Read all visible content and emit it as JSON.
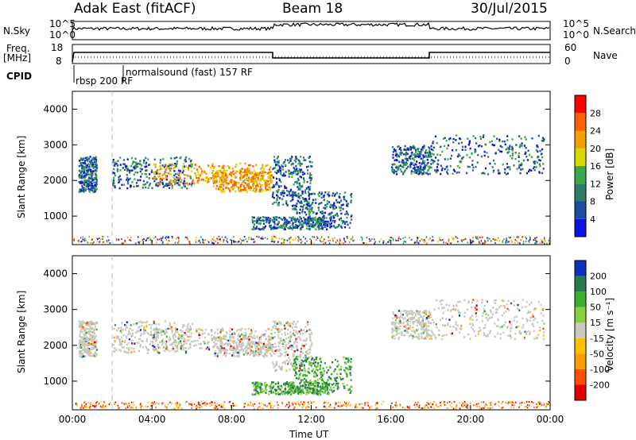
{
  "header": {
    "radar": "Adak East (fitACF)",
    "beam": "Beam 18",
    "date": "30/Jul/2015"
  },
  "panels": {
    "nsky_label": "N.Sky",
    "nsky_ticks": [
      "10^5",
      "10^0"
    ],
    "nsearch_label": "N.Search",
    "nsearch_ticks": [
      "10^5",
      "10^0"
    ],
    "freq_label_1": "Freq.",
    "freq_label_2": "[MHz]",
    "freq_ticks": [
      "18",
      "8"
    ],
    "nave_label": "Nave",
    "nave_ticks": [
      "60",
      "0"
    ],
    "cpid_label": "CPID",
    "cpid_modes": [
      "rbsp 200 RF",
      "normalsound (fast) 157 RF"
    ]
  },
  "chart_data": [
    {
      "type": "heatmap",
      "title": "",
      "ylabel": "Slant Range [km]",
      "xlabel": "",
      "y_ticks": [
        "1000",
        "2000",
        "3000",
        "4000"
      ],
      "ylim": [
        200,
        4500
      ],
      "colorbar_label": "Power [dB]",
      "colorbar_ticks": [
        "4",
        "8",
        "12",
        "16",
        "20",
        "24",
        "28"
      ],
      "colors": [
        "#1010e8",
        "#1d4da0",
        "#2e7d6a",
        "#3aa84a",
        "#d8d800",
        "#f0a000",
        "#ff6000",
        "#ff0000"
      ]
    },
    {
      "type": "heatmap",
      "title": "",
      "ylabel": "Slant Range [km]",
      "xlabel": "Time UT",
      "x_ticks": [
        "00:00",
        "04:00",
        "08:00",
        "12:00",
        "16:00",
        "20:00",
        "00:00"
      ],
      "y_ticks": [
        "1000",
        "2000",
        "3000",
        "4000"
      ],
      "ylim": [
        200,
        4500
      ],
      "colorbar_label": "Velocity [m s⁻¹]",
      "colorbar_ticks": [
        "-200",
        "-100",
        "-50",
        "-15",
        "15",
        "50",
        "100",
        "200"
      ],
      "colors": [
        "#e00000",
        "#ff5000",
        "#ff9a00",
        "#ffc000",
        "#c8c8c0",
        "#86d040",
        "#3ab030",
        "#2a7a50",
        "#1030c0"
      ]
    }
  ]
}
